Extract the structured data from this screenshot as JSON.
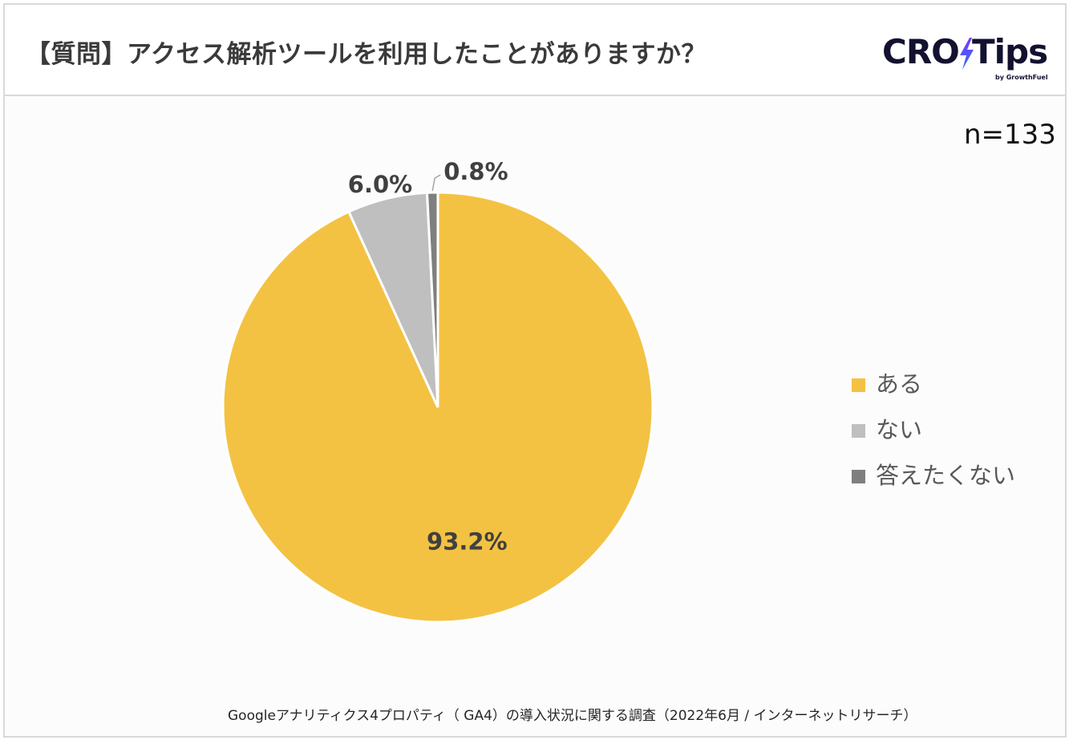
{
  "header": {
    "title": "【質問】アクセス解析ツールを利用したことがありますか？"
  },
  "logo": {
    "wordmark_left": "CRO",
    "wordmark_right": "Tips",
    "byline": "by GrowthFuel",
    "colors": {
      "text": "#12112f",
      "bolt_top": "#7a3df0",
      "bolt_bottom": "#2f6bff"
    }
  },
  "sample_size": "n=133",
  "source": "Googleアナリティクス4プロパティ（ GA4）の導入状況に関する調査（2022年6月 / インターネットリサーチ）",
  "chart_data": {
    "type": "pie",
    "start_angle_deg": 0,
    "direction": "clockwise",
    "legend_position": "right",
    "slices": [
      {
        "label": "ある",
        "value": 93.2,
        "display": "93.2%",
        "color": "#f4c242"
      },
      {
        "label": "ない",
        "value": 6.0,
        "display": "6.0%",
        "color": "#bfbfbf"
      },
      {
        "label": "答えたくない",
        "value": 0.8,
        "display": "0.8%",
        "color": "#7f7f7f"
      }
    ]
  }
}
